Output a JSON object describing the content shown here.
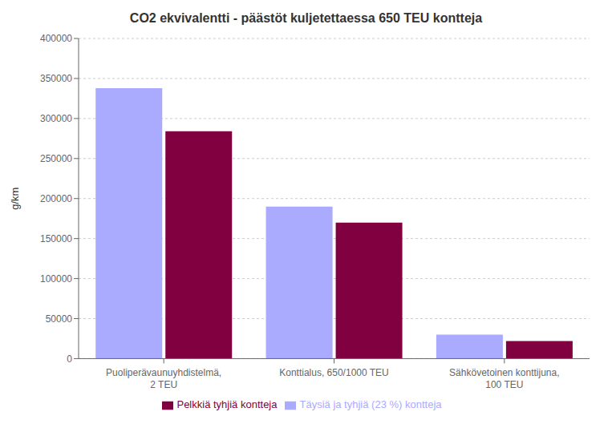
{
  "chart_data": {
    "type": "bar",
    "title": "CO2 ekvivalentti - päästöt kuljetettaessa 650 TEU kontteja",
    "ylabel": "g/km",
    "categories": [
      "Puoliperävaunuyhdistelmä,\n2 TEU",
      "Konttialus, 650/1000 TEU",
      "Sähkövetoinen konttijuna,\n100 TEU"
    ],
    "series": [
      {
        "name": "Täysiä ja tyhjiä (23 %) kontteja",
        "color": "#aaaaff",
        "values": [
          338000,
          190000,
          30000
        ]
      },
      {
        "name": "Pelkkiä tyhjiä kontteja",
        "color": "#800040",
        "values": [
          284000,
          170000,
          22000
        ]
      }
    ],
    "ylim": [
      0,
      400000
    ],
    "yticks": [
      0,
      50000,
      100000,
      150000,
      200000,
      250000,
      300000,
      350000,
      400000
    ],
    "grid": true,
    "legend": "bottom"
  }
}
